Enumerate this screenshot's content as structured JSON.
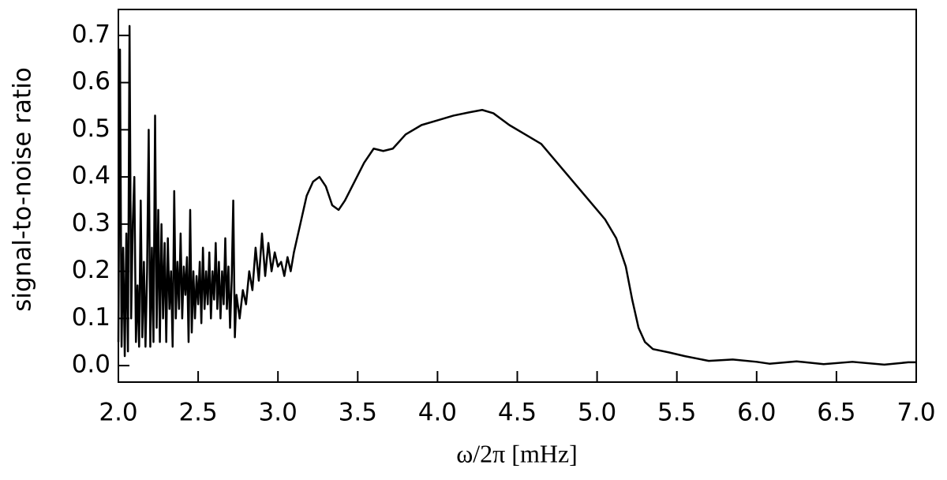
{
  "chart_data": {
    "type": "line",
    "xlabel": "ω/2π [mHz]",
    "ylabel": "signal-to-noise ratio",
    "x": [
      2.0,
      2.01,
      2.02,
      2.03,
      2.04,
      2.05,
      2.06,
      2.07,
      2.08,
      2.09,
      2.1,
      2.11,
      2.12,
      2.13,
      2.14,
      2.15,
      2.16,
      2.17,
      2.18,
      2.19,
      2.2,
      2.21,
      2.22,
      2.23,
      2.24,
      2.25,
      2.26,
      2.27,
      2.28,
      2.29,
      2.3,
      2.31,
      2.32,
      2.33,
      2.34,
      2.35,
      2.36,
      2.37,
      2.38,
      2.39,
      2.4,
      2.41,
      2.42,
      2.43,
      2.44,
      2.45,
      2.46,
      2.47,
      2.48,
      2.49,
      2.5,
      2.51,
      2.52,
      2.53,
      2.54,
      2.55,
      2.56,
      2.57,
      2.58,
      2.59,
      2.6,
      2.61,
      2.62,
      2.63,
      2.64,
      2.65,
      2.66,
      2.67,
      2.68,
      2.69,
      2.7,
      2.71,
      2.72,
      2.73,
      2.74,
      2.76,
      2.78,
      2.8,
      2.82,
      2.84,
      2.86,
      2.88,
      2.9,
      2.92,
      2.94,
      2.96,
      2.98,
      3.0,
      3.02,
      3.04,
      3.06,
      3.08,
      3.1,
      3.14,
      3.18,
      3.22,
      3.26,
      3.3,
      3.34,
      3.38,
      3.42,
      3.48,
      3.54,
      3.6,
      3.66,
      3.72,
      3.8,
      3.9,
      4.0,
      4.1,
      4.2,
      4.28,
      4.35,
      4.45,
      4.55,
      4.65,
      4.75,
      4.85,
      4.95,
      5.05,
      5.12,
      5.18,
      5.22,
      5.26,
      5.3,
      5.35,
      5.45,
      5.55,
      5.7,
      5.85,
      6.0,
      6.08,
      6.25,
      6.42,
      6.6,
      6.8,
      6.95,
      7.0
    ],
    "series": [
      {
        "color": "#000000",
        "values": [
          0.05,
          0.67,
          0.04,
          0.25,
          0.02,
          0.28,
          0.03,
          0.72,
          0.1,
          0.3,
          0.4,
          0.05,
          0.17,
          0.04,
          0.35,
          0.06,
          0.22,
          0.04,
          0.2,
          0.5,
          0.04,
          0.25,
          0.05,
          0.53,
          0.08,
          0.33,
          0.05,
          0.3,
          0.1,
          0.26,
          0.05,
          0.27,
          0.12,
          0.2,
          0.04,
          0.37,
          0.1,
          0.22,
          0.12,
          0.28,
          0.1,
          0.21,
          0.15,
          0.23,
          0.05,
          0.33,
          0.07,
          0.2,
          0.1,
          0.19,
          0.13,
          0.22,
          0.09,
          0.25,
          0.12,
          0.2,
          0.13,
          0.24,
          0.1,
          0.2,
          0.14,
          0.26,
          0.12,
          0.22,
          0.1,
          0.2,
          0.13,
          0.27,
          0.12,
          0.21,
          0.08,
          0.18,
          0.35,
          0.06,
          0.15,
          0.1,
          0.16,
          0.13,
          0.2,
          0.16,
          0.25,
          0.18,
          0.28,
          0.19,
          0.26,
          0.2,
          0.24,
          0.21,
          0.22,
          0.19,
          0.23,
          0.2,
          0.24,
          0.3,
          0.36,
          0.39,
          0.4,
          0.38,
          0.34,
          0.33,
          0.35,
          0.39,
          0.43,
          0.46,
          0.455,
          0.46,
          0.49,
          0.51,
          0.52,
          0.53,
          0.537,
          0.542,
          0.535,
          0.51,
          0.49,
          0.47,
          0.43,
          0.39,
          0.35,
          0.31,
          0.27,
          0.21,
          0.14,
          0.08,
          0.05,
          0.035,
          0.028,
          0.02,
          0.01,
          0.013,
          0.008,
          0.004,
          0.009,
          0.003,
          0.008,
          0.002,
          0.007,
          0.007
        ]
      }
    ],
    "xlim": [
      2.0,
      7.0
    ],
    "xticks": [
      {
        "value": 2,
        "label": "2.0"
      },
      2.5,
      {
        "value": 3,
        "label": "3.0"
      },
      3.5,
      {
        "value": 4,
        "label": "4.0"
      },
      4.5,
      {
        "value": 5,
        "label": "5.0"
      },
      5.5,
      {
        "value": 6,
        "label": "6.0"
      },
      6.5,
      {
        "value": 7,
        "label": "7.0"
      }
    ],
    "ylim": [
      -0.035,
      0.755
    ],
    "yticks": [
      {
        "value": 0,
        "label": "0.0"
      },
      0.1,
      0.2,
      0.3,
      0.4,
      0.5,
      0.6,
      0.7
    ]
  }
}
